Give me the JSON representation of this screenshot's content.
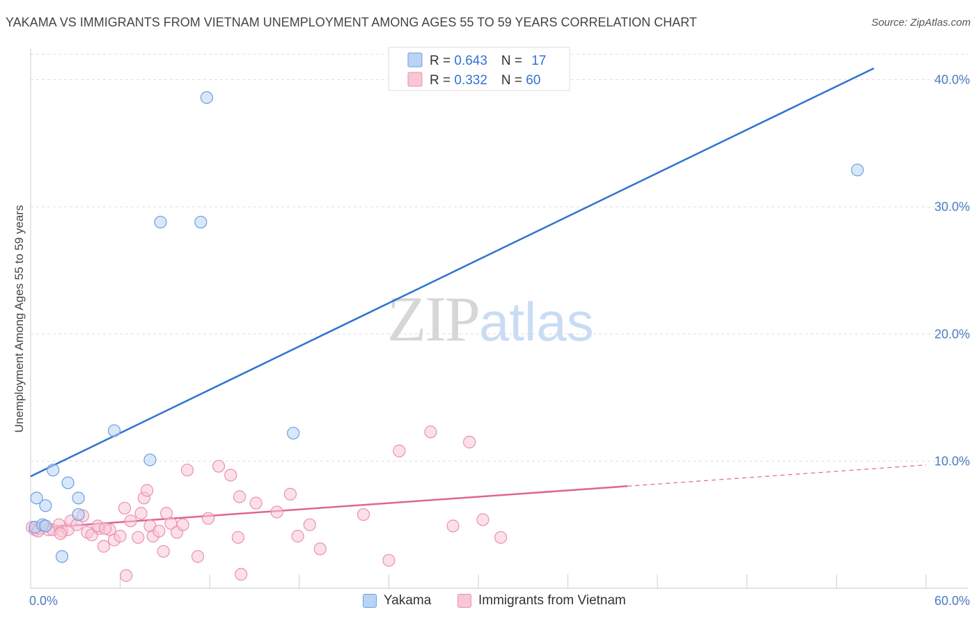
{
  "title": "YAKAMA VS IMMIGRANTS FROM VIETNAM UNEMPLOYMENT AMONG AGES 55 TO 59 YEARS CORRELATION CHART",
  "source": "Source: ZipAtlas.com",
  "watermark": {
    "zip": "ZIP",
    "atlas": "atlas"
  },
  "colors": {
    "yakama_fill": "#b9d3f5",
    "yakama_stroke": "#6c9fe0",
    "yakama_line": "#2e73cf",
    "vietnam_fill": "#f8c6d6",
    "vietnam_stroke": "#ec8fae",
    "vietnam_line": "#e0658f",
    "tick_text": "#4a7cc0",
    "grid": "#dddddd"
  },
  "legend": {
    "rows": [
      {
        "r_label": "R = ",
        "r_value": "0.643",
        "n_label": "N = ",
        "n_value": "17"
      },
      {
        "r_label": "R = ",
        "r_value": "0.332",
        "n_label": "N = ",
        "n_value": "60"
      }
    ]
  },
  "bottom_legend": [
    {
      "label": "Yakama"
    },
    {
      "label": "Immigrants from Vietnam"
    }
  ],
  "chart_data": {
    "type": "scatter",
    "title": "YAKAMA VS IMMIGRANTS FROM VIETNAM UNEMPLOYMENT AMONG AGES 55 TO 59 YEARS CORRELATION CHART",
    "xlabel": "",
    "ylabel": "Unemployment Among Ages 55 to 59 years",
    "xlim": [
      0,
      60
    ],
    "ylim": [
      0,
      42
    ],
    "x_tick_labels": [
      {
        "value": 0,
        "label": "0.0%"
      },
      {
        "value": 60,
        "label": "60.0%"
      }
    ],
    "y_tick_labels": [
      {
        "value": 10,
        "label": "10.0%"
      },
      {
        "value": 20,
        "label": "20.0%"
      },
      {
        "value": 30,
        "label": "30.0%"
      },
      {
        "value": 40,
        "label": "40.0%"
      }
    ],
    "x_minor_ticks": [
      0,
      6,
      12,
      18,
      24,
      30,
      36,
      42,
      48,
      54,
      60
    ],
    "grid": true,
    "legend_position": "top-center",
    "series": [
      {
        "name": "Yakama",
        "points": [
          [
            0.3,
            4.8
          ],
          [
            0.4,
            7.1
          ],
          [
            0.8,
            5.0
          ],
          [
            1.0,
            6.5
          ],
          [
            1.5,
            9.3
          ],
          [
            2.1,
            2.5
          ],
          [
            2.5,
            8.3
          ],
          [
            3.2,
            7.1
          ],
          [
            3.2,
            5.8
          ],
          [
            5.6,
            12.4
          ],
          [
            8.0,
            10.1
          ],
          [
            8.7,
            28.8
          ],
          [
            11.4,
            28.8
          ],
          [
            11.8,
            38.6
          ],
          [
            17.6,
            12.2
          ],
          [
            55.4,
            32.9
          ],
          [
            1.0,
            4.9
          ]
        ],
        "trend": {
          "x0": 0,
          "y0": 8.8,
          "x1": 56.5,
          "y1": 40.9,
          "dashed_after": null
        }
      },
      {
        "name": "Immigrants from Vietnam",
        "points": [
          [
            0.1,
            4.8
          ],
          [
            0.3,
            4.6
          ],
          [
            0.6,
            4.7
          ],
          [
            0.9,
            4.9
          ],
          [
            1.2,
            4.6
          ],
          [
            1.5,
            4.6
          ],
          [
            1.9,
            5.0
          ],
          [
            2.1,
            4.5
          ],
          [
            2.5,
            4.6
          ],
          [
            2.7,
            5.3
          ],
          [
            3.1,
            5.0
          ],
          [
            3.5,
            5.7
          ],
          [
            3.8,
            4.4
          ],
          [
            4.1,
            4.2
          ],
          [
            4.6,
            4.7
          ],
          [
            4.9,
            3.3
          ],
          [
            5.3,
            4.6
          ],
          [
            5.6,
            3.8
          ],
          [
            6.0,
            4.1
          ],
          [
            6.3,
            6.3
          ],
          [
            6.4,
            1.0
          ],
          [
            6.7,
            5.3
          ],
          [
            7.2,
            4.0
          ],
          [
            7.4,
            5.9
          ],
          [
            7.6,
            7.1
          ],
          [
            7.8,
            7.7
          ],
          [
            8.0,
            4.9
          ],
          [
            8.2,
            4.1
          ],
          [
            8.6,
            4.5
          ],
          [
            8.9,
            2.9
          ],
          [
            9.1,
            5.9
          ],
          [
            9.4,
            5.1
          ],
          [
            9.8,
            4.4
          ],
          [
            10.2,
            5.0
          ],
          [
            10.5,
            9.3
          ],
          [
            11.2,
            2.5
          ],
          [
            11.9,
            5.5
          ],
          [
            12.6,
            9.6
          ],
          [
            13.4,
            8.9
          ],
          [
            13.9,
            4.0
          ],
          [
            14.0,
            7.2
          ],
          [
            14.1,
            1.1
          ],
          [
            15.1,
            6.7
          ],
          [
            16.5,
            6.0
          ],
          [
            17.4,
            7.4
          ],
          [
            17.9,
            4.1
          ],
          [
            18.7,
            5.0
          ],
          [
            19.4,
            3.1
          ],
          [
            22.3,
            5.8
          ],
          [
            24.0,
            2.2
          ],
          [
            24.7,
            10.8
          ],
          [
            26.8,
            12.3
          ],
          [
            28.3,
            4.9
          ],
          [
            29.4,
            11.5
          ],
          [
            30.3,
            5.4
          ],
          [
            31.5,
            4.0
          ],
          [
            4.5,
            4.9
          ],
          [
            2.0,
            4.3
          ],
          [
            0.5,
            4.5
          ],
          [
            5.0,
            4.7
          ]
        ],
        "trend": {
          "x0": 0,
          "y0": 4.7,
          "x1": 60,
          "y1": 9.7,
          "dashed_after": 40
        }
      }
    ]
  }
}
